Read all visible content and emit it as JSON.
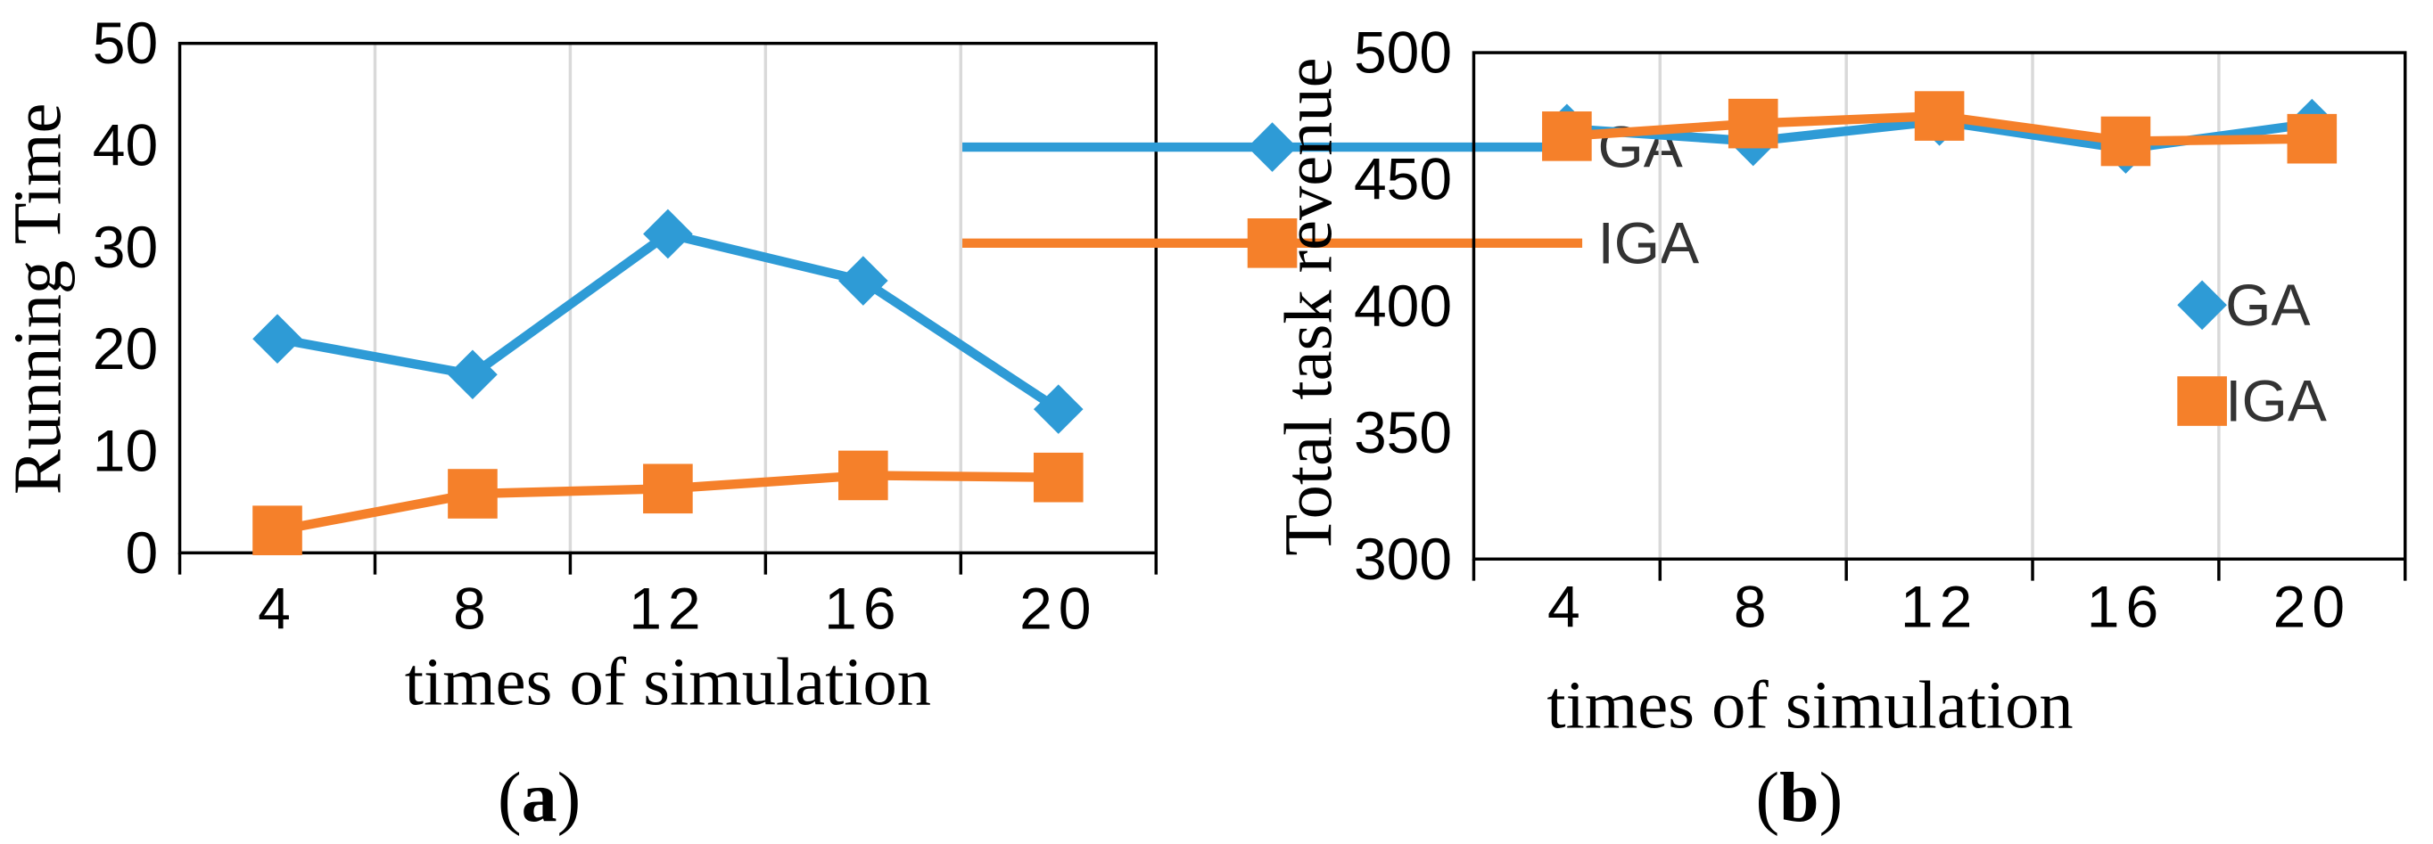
{
  "chart_data": [
    {
      "type": "line",
      "caption": {
        "open": "(",
        "letter": "a",
        "close": ")"
      },
      "xlabel": "times of simulation",
      "ylabel": "Running Time",
      "categories": [
        "4",
        "8",
        "12",
        "16",
        "20"
      ],
      "ylim": [
        0,
        50
      ],
      "yticks": [
        0,
        10,
        20,
        30,
        40,
        50
      ],
      "grid": "vertical",
      "legend": "top-right",
      "series": [
        {
          "name": "GA",
          "color": "#2E9BD6",
          "marker": "diamond",
          "values": [
            21,
            17.5,
            31.3,
            26.7,
            14.1
          ]
        },
        {
          "name": "IGA",
          "color": "#F5802A",
          "marker": "square",
          "values": [
            2.2,
            5.8,
            6.3,
            7.6,
            7.4
          ]
        }
      ]
    },
    {
      "type": "line",
      "caption": {
        "open": "(",
        "letter": "b",
        "close": ")"
      },
      "xlabel": "times of simulation",
      "ylabel": "Total task revenue",
      "categories": [
        "4",
        "8",
        "12",
        "16",
        "20"
      ],
      "ylim": [
        300,
        500
      ],
      "yticks": [
        300,
        350,
        400,
        450,
        500
      ],
      "grid": "vertical",
      "legend": "right",
      "series": [
        {
          "name": "GA",
          "color": "#2E9BD6",
          "marker": "diamond",
          "values": [
            470,
            465,
            473,
            462,
            472
          ]
        },
        {
          "name": "IGA",
          "color": "#F5802A",
          "marker": "square",
          "values": [
            467,
            472,
            475,
            465,
            466
          ]
        }
      ]
    }
  ]
}
